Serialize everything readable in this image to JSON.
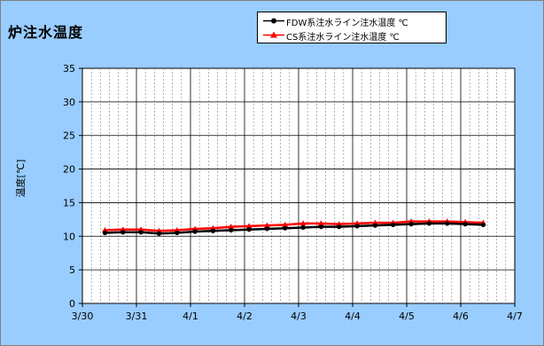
{
  "chart_data": {
    "type": "line",
    "title": "炉注水温度",
    "xlabel": "",
    "ylabel": "温度[℃]",
    "ylim": [
      0,
      35
    ],
    "yticks": [
      0,
      5,
      10,
      15,
      20,
      25,
      30,
      35
    ],
    "xlim": [
      "3/30",
      "4/7"
    ],
    "xticks": [
      "3/30",
      "3/31",
      "4/1",
      "4/2",
      "4/3",
      "4/4",
      "4/5",
      "4/6",
      "4/7"
    ],
    "grid": true,
    "legend_position": "top-right",
    "series": [
      {
        "name": "FDW系注水ライン注水温度 ℃",
        "color": "#000000",
        "marker": "circle",
        "x": [
          "3/30 10:00",
          "3/30 18:00",
          "3/31 02:00",
          "3/31 10:00",
          "3/31 18:00",
          "4/1 02:00",
          "4/1 10:00",
          "4/1 18:00",
          "4/2 02:00",
          "4/2 10:00",
          "4/2 18:00",
          "4/3 02:00",
          "4/3 10:00",
          "4/3 18:00",
          "4/4 02:00",
          "4/4 10:00",
          "4/4 18:00",
          "4/5 02:00",
          "4/5 10:00",
          "4/5 18:00",
          "4/6 02:00",
          "4/6 10:00"
        ],
        "values": [
          10.5,
          10.6,
          10.6,
          10.4,
          10.5,
          10.7,
          10.8,
          10.9,
          11.0,
          11.1,
          11.2,
          11.3,
          11.4,
          11.4,
          11.5,
          11.6,
          11.7,
          11.8,
          11.9,
          11.9,
          11.8,
          11.7
        ]
      },
      {
        "name": "CS系注水ライン注水温度 ℃",
        "color": "#ff0000",
        "marker": "triangle",
        "x": [
          "3/30 10:00",
          "3/30 18:00",
          "3/31 02:00",
          "3/31 10:00",
          "3/31 18:00",
          "4/1 02:00",
          "4/1 10:00",
          "4/1 18:00",
          "4/2 02:00",
          "4/2 10:00",
          "4/2 18:00",
          "4/3 02:00",
          "4/3 10:00",
          "4/3 18:00",
          "4/4 02:00",
          "4/4 10:00",
          "4/4 18:00",
          "4/5 02:00",
          "4/5 10:00",
          "4/5 18:00",
          "4/6 02:00",
          "4/6 10:00"
        ],
        "values": [
          10.9,
          11.0,
          11.0,
          10.8,
          10.9,
          11.1,
          11.2,
          11.4,
          11.5,
          11.6,
          11.7,
          11.9,
          11.9,
          11.8,
          11.9,
          12.0,
          12.0,
          12.2,
          12.2,
          12.2,
          12.1,
          12.0
        ]
      }
    ]
  },
  "colors": {
    "background": "#99ccff",
    "plot_area": "#ffffff"
  }
}
